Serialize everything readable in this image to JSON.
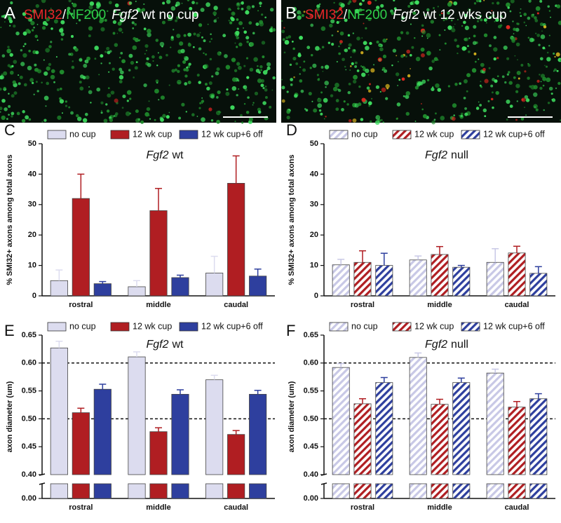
{
  "images": [
    {
      "label": "A",
      "stains": [
        {
          "text": "SMI32",
          "color": "#e8262a"
        },
        {
          "text": "/"
        },
        {
          "text": "NF200",
          "color": "#2fd04a"
        }
      ],
      "gene": "Fgf2",
      "condition": "wt no cup"
    },
    {
      "label": "B",
      "stains": [
        {
          "text": "SMI32",
          "color": "#e8262a"
        },
        {
          "text": "/"
        },
        {
          "text": "NF200",
          "color": "#2fd04a"
        }
      ],
      "gene": "Fgf2",
      "condition": "wt 12 wks cup"
    }
  ],
  "chart_data": [
    {
      "type": "bar",
      "panel": "C",
      "title": "Fgf2",
      "subtitle": "wt",
      "ylabel": "% SMI32+ axons among total axons",
      "categories": [
        "rostral",
        "middle",
        "caudal"
      ],
      "hatch": false,
      "series": [
        {
          "name": "no cup",
          "color": "#dcdcef",
          "values": [
            5,
            3,
            7.5
          ],
          "errors": [
            3.5,
            2,
            5.5
          ]
        },
        {
          "name": "12 wk cup",
          "color": "#b01e22",
          "values": [
            32,
            28,
            37
          ],
          "errors": [
            8,
            7.3,
            9
          ]
        },
        {
          "name": "12 wk cup+6 off",
          "color": "#2e3f9e",
          "values": [
            4,
            6,
            6.5
          ],
          "errors": [
            0.7,
            0.8,
            2.3
          ]
        }
      ],
      "ylim": [
        0,
        50
      ],
      "yticks": [
        0,
        10,
        20,
        30,
        40,
        50
      ]
    },
    {
      "type": "bar",
      "panel": "D",
      "title": "Fgf2",
      "subtitle": "null",
      "ylabel": "% SMI32+ axons among total axons",
      "categories": [
        "rostral",
        "middle",
        "caudal"
      ],
      "hatch": true,
      "series": [
        {
          "name": "no cup",
          "color": "#c8c8e6",
          "values": [
            10.2,
            11.8,
            11
          ],
          "errors": [
            1.8,
            1.3,
            4.5
          ]
        },
        {
          "name": "12 wk cup",
          "color": "#b01e22",
          "values": [
            11,
            13.6,
            14.1
          ],
          "errors": [
            3.8,
            2.6,
            2.2
          ]
        },
        {
          "name": "12 wk cup+6 off",
          "color": "#2e3f9e",
          "values": [
            10,
            9.4,
            7.4
          ],
          "errors": [
            4,
            0.6,
            2.2
          ]
        }
      ],
      "ylim": [
        0,
        50
      ],
      "yticks": [
        0,
        10,
        20,
        30,
        40,
        50
      ]
    },
    {
      "type": "bar",
      "panel": "E",
      "title": "Fgf2",
      "subtitle": "wt",
      "ylabel": "axon diameter (um)",
      "categories": [
        "rostral",
        "middle",
        "caudal"
      ],
      "hatch": false,
      "series": [
        {
          "name": "no cup",
          "color": "#dcdcef",
          "values": [
            0.627,
            0.611,
            0.57
          ],
          "errors": [
            0.012,
            0.009,
            0.008
          ]
        },
        {
          "name": "12 wk cup",
          "color": "#b01e22",
          "values": [
            0.511,
            0.477,
            0.472
          ],
          "errors": [
            0.008,
            0.007,
            0.007
          ]
        },
        {
          "name": "12 wk cup+6 off",
          "color": "#2e3f9e",
          "values": [
            0.553,
            0.544,
            0.544
          ],
          "errors": [
            0.009,
            0.008,
            0.007
          ]
        }
      ],
      "ylim": [
        0.4,
        0.65
      ],
      "yticks": [
        {
          "value": 0.4,
          "label": "0.40"
        },
        0.45,
        {
          "value": 0.5,
          "label": "0.50"
        },
        0.55,
        {
          "value": 0.6,
          "label": "0.60"
        },
        0.65
      ],
      "ylim_lower": [
        0,
        0.03
      ],
      "yticks_lower": [
        {
          "value": 0,
          "label": "0.00"
        }
      ],
      "hlines": [
        0.5,
        0.6
      ]
    },
    {
      "type": "bar",
      "panel": "F",
      "title": "Fgf2",
      "subtitle": "null",
      "ylabel": "axon diameter (um)",
      "categories": [
        "rostral",
        "middle",
        "caudal"
      ],
      "hatch": true,
      "series": [
        {
          "name": "no cup",
          "color": "#c8c8e6",
          "values": [
            0.592,
            0.61,
            0.582
          ],
          "errors": [
            0.007,
            0.008,
            0.007
          ]
        },
        {
          "name": "12 wk cup",
          "color": "#b01e22",
          "values": [
            0.527,
            0.526,
            0.521
          ],
          "errors": [
            0.009,
            0.009,
            0.01
          ]
        },
        {
          "name": "12 wk cup+6 off",
          "color": "#2e3f9e",
          "values": [
            0.565,
            0.565,
            0.536
          ],
          "errors": [
            0.009,
            0.008,
            0.009
          ]
        }
      ],
      "ylim": [
        0.4,
        0.65
      ],
      "yticks": [
        {
          "value": 0.4,
          "label": "0.40"
        },
        0.45,
        {
          "value": 0.5,
          "label": "0.50"
        },
        0.55,
        {
          "value": 0.6,
          "label": "0.60"
        },
        0.65
      ],
      "ylim_lower": [
        0,
        0.03
      ],
      "yticks_lower": [
        {
          "value": 0,
          "label": "0.00"
        }
      ],
      "hlines": [
        0.5,
        0.6
      ]
    }
  ]
}
